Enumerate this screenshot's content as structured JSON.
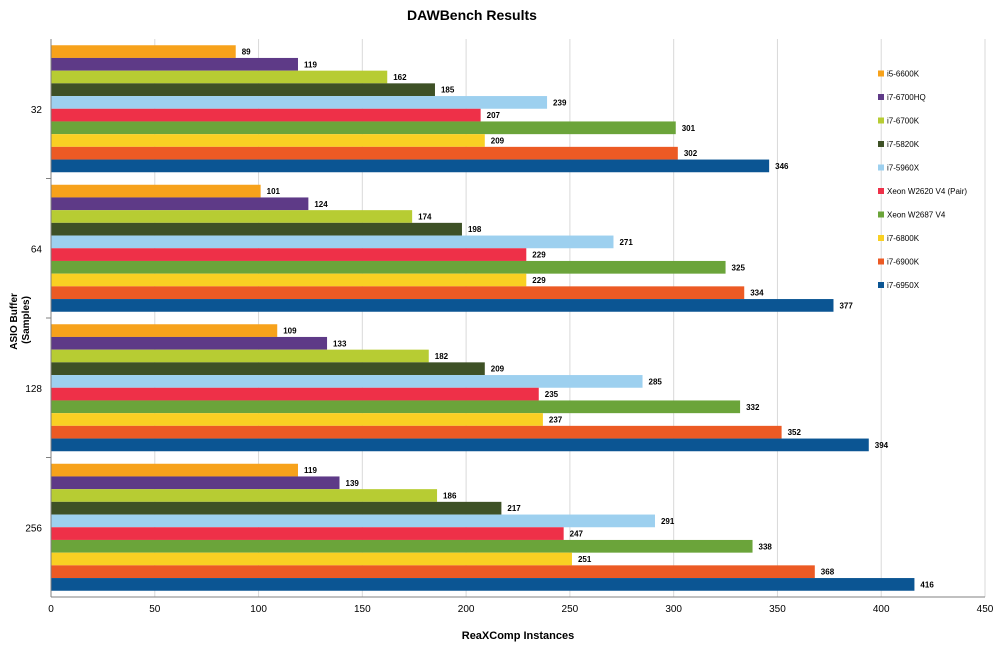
{
  "chart_data": {
    "type": "bar",
    "orientation": "horizontal",
    "title": "DAWBench Results",
    "xlabel": "ReaXComp Instances",
    "ylabel_lines": [
      "ASIO Buffer",
      "(Samples)"
    ],
    "xlim": [
      0,
      450
    ],
    "xticks": [
      0,
      50,
      100,
      150,
      200,
      250,
      300,
      350,
      400,
      450
    ],
    "grid": true,
    "legend_position": "right",
    "categories": [
      "32",
      "64",
      "128",
      "256"
    ],
    "series": [
      {
        "name": "i5-6600K",
        "color": "#F7A21B",
        "values": [
          89,
          101,
          109,
          119
        ]
      },
      {
        "name": "i7-6700HQ",
        "color": "#5E3A87",
        "values": [
          119,
          124,
          133,
          139
        ]
      },
      {
        "name": "i7-6700K",
        "color": "#B7CC33",
        "values": [
          162,
          174,
          182,
          186
        ]
      },
      {
        "name": "i7-5820K",
        "color": "#3E5126",
        "values": [
          185,
          198,
          209,
          217
        ]
      },
      {
        "name": "i7-5960X",
        "color": "#9DD0EF",
        "values": [
          239,
          271,
          285,
          291
        ]
      },
      {
        "name": "Xeon W2620 V4 (Pair)",
        "color": "#EE3048",
        "values": [
          207,
          229,
          235,
          247
        ]
      },
      {
        "name": "Xeon W2687 V4",
        "color": "#6BA43A",
        "values": [
          301,
          325,
          332,
          338
        ]
      },
      {
        "name": "i7-6800K",
        "color": "#F9D023",
        "values": [
          209,
          229,
          237,
          251
        ]
      },
      {
        "name": "i7-6900K",
        "color": "#EC5A24",
        "values": [
          302,
          334,
          352,
          368
        ]
      },
      {
        "name": "i7-6950X",
        "color": "#0B5593",
        "values": [
          346,
          377,
          394,
          416
        ]
      }
    ]
  }
}
